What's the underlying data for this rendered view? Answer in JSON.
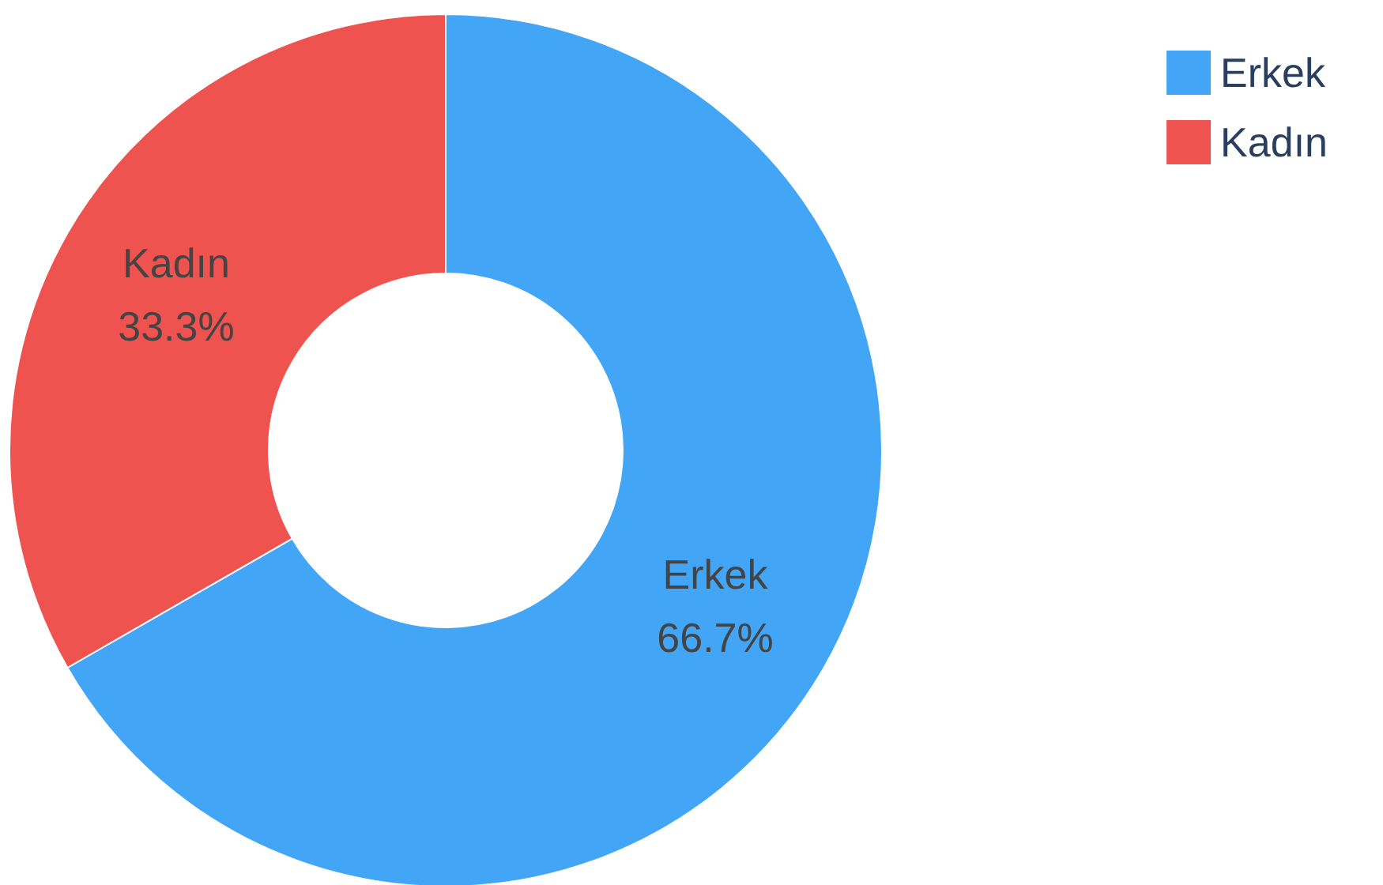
{
  "chart_data": {
    "type": "donut",
    "categories": [
      "Erkek",
      "Kadın"
    ],
    "values": [
      66.7,
      33.3
    ],
    "colors": [
      "#42a5f5",
      "#ef5350"
    ],
    "value_labels": [
      "66.7%",
      "33.3%"
    ],
    "legend": "top right"
  }
}
